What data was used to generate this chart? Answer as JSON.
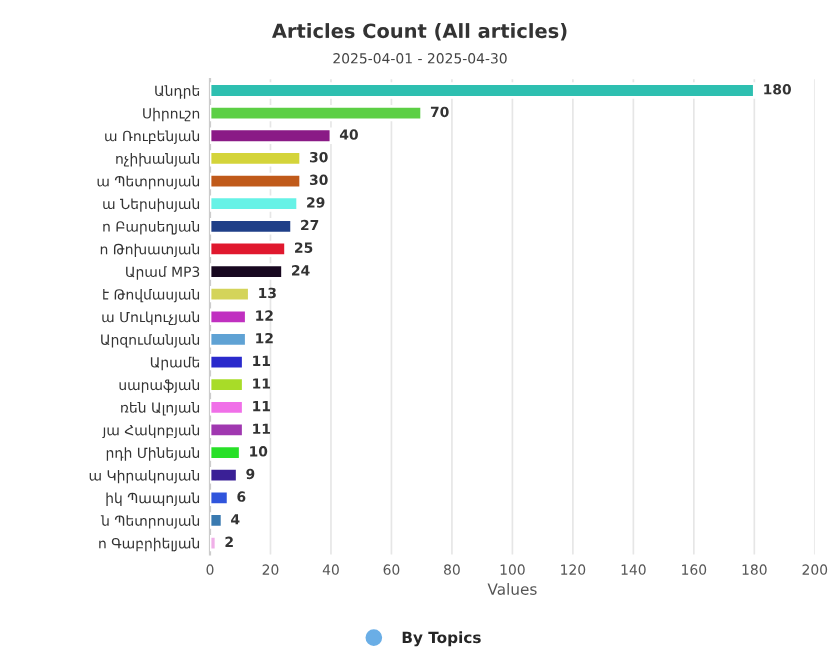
{
  "chart_data": {
    "type": "bar",
    "orientation": "horizontal",
    "title": "Articles Count (All articles)",
    "subtitle": "2025-04-01 - 2025-04-30",
    "xlabel": "Values",
    "categories": [
      "Անդրե",
      "Սիրուշո",
      "ա Ռուբենյան",
      "ոչիխանյան",
      "ա Պետրոսյան",
      "ա Ներսիսյան",
      "ո Բարսեղյան",
      "ո Թոխատյան",
      "Արամ MP3",
      "է Թովմասյան",
      "ա Մուկուչյան",
      "Արզումանյան",
      "Արամե",
      "սարաֆյան",
      "ռեն Ալոյան",
      "յա Հակոբյան",
      "րդի Մինեյան",
      "ա Կիրակոսյան",
      "իկ Պապոյան",
      "ն Պետրոսյան",
      "ո Գաբրիելյան"
    ],
    "series": [
      {
        "name": "By Topics",
        "color": "#6aaee6",
        "values": [
          180,
          70,
          40,
          30,
          30,
          29,
          27,
          25,
          24,
          13,
          12,
          12,
          11,
          11,
          11,
          11,
          10,
          9,
          6,
          4,
          2
        ],
        "colors": [
          "#2ebfb0",
          "#5ccf45",
          "#8a1a86",
          "#d4d43a",
          "#c05a1a",
          "#66f2e6",
          "#1f3f88",
          "#e0182e",
          "#180820",
          "#d4d45a",
          "#c030c0",
          "#5fa2d4",
          "#2a2acc",
          "#a8dc28",
          "#f070e8",
          "#a038b0",
          "#28e028",
          "#3a2096",
          "#3055dc",
          "#3a7ab0",
          "#f0b0e8"
        ]
      }
    ],
    "xlim": [
      0,
      200
    ],
    "xticks": [
      0,
      20,
      40,
      60,
      80,
      100,
      120,
      140,
      160,
      180,
      200
    ],
    "grid": "x",
    "legend": "bottom",
    "data_labels": true
  }
}
